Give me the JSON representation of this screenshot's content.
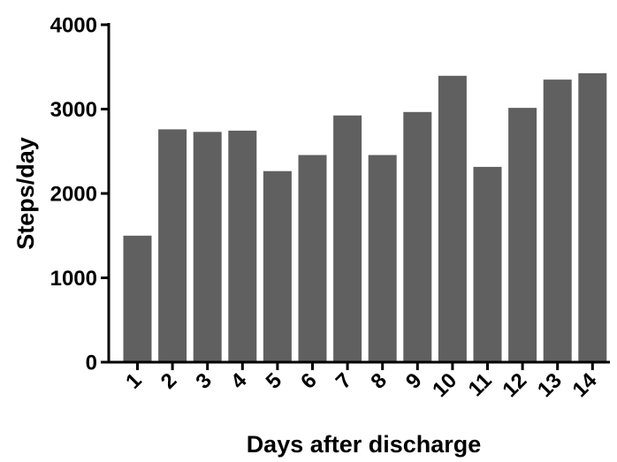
{
  "chart_data": {
    "type": "bar",
    "title": "",
    "xlabel": "Days after discharge",
    "ylabel": "Steps/day",
    "categories": [
      "1",
      "2",
      "3",
      "4",
      "5",
      "6",
      "7",
      "8",
      "9",
      "10",
      "11",
      "12",
      "13",
      "14"
    ],
    "values": [
      1500,
      2760,
      2730,
      2745,
      2265,
      2455,
      2925,
      2455,
      2965,
      3395,
      2315,
      3015,
      3350,
      3425
    ],
    "ylim": [
      0,
      4000
    ],
    "yticks": [
      "0",
      "1000",
      "2000",
      "3000",
      "4000"
    ],
    "grid": false,
    "bar_color": "#606060"
  }
}
